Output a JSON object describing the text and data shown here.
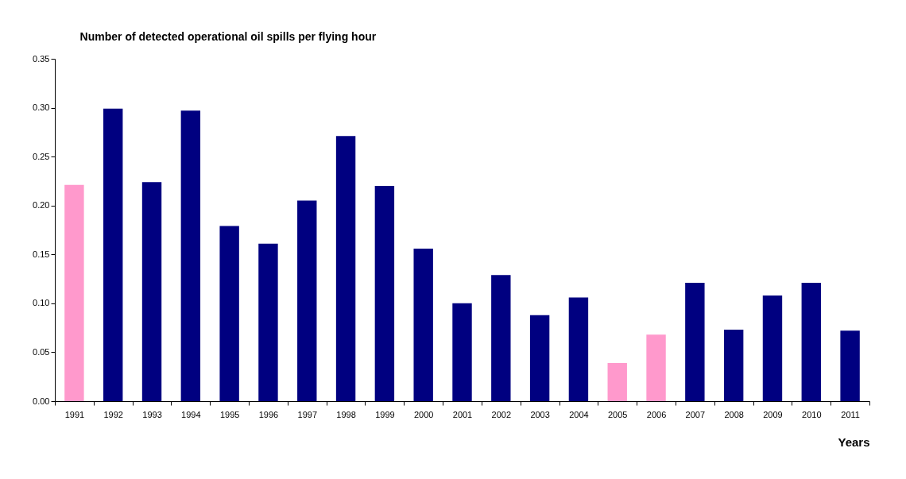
{
  "chart_data": {
    "type": "bar",
    "title": "Number of detected operational oil spills per flying hour",
    "xlabel": "Years",
    "categories": [
      "1991",
      "1992",
      "1993",
      "1994",
      "1995",
      "1996",
      "1997",
      "1998",
      "1999",
      "2000",
      "2001",
      "2002",
      "2003",
      "2004",
      "2005",
      "2006",
      "2007",
      "2008",
      "2009",
      "2010",
      "2011"
    ],
    "values": [
      0.221,
      0.299,
      0.224,
      0.297,
      0.179,
      0.161,
      0.205,
      0.271,
      0.22,
      0.156,
      0.1,
      0.129,
      0.088,
      0.106,
      0.039,
      0.068,
      0.121,
      0.073,
      0.108,
      0.121,
      0.072
    ],
    "colors": [
      "#ff99cc",
      "#000080",
      "#000080",
      "#000080",
      "#000080",
      "#000080",
      "#000080",
      "#000080",
      "#000080",
      "#000080",
      "#000080",
      "#000080",
      "#000080",
      "#000080",
      "#ff99cc",
      "#ff99cc",
      "#000080",
      "#000080",
      "#000080",
      "#000080",
      "#000080"
    ],
    "ylim": [
      0,
      0.35
    ],
    "yticks": [
      {
        "value": 0,
        "label": "0.00"
      },
      {
        "value": 0.05,
        "label": "0.05"
      },
      {
        "value": 0.1,
        "label": "0.10"
      },
      {
        "value": 0.15,
        "label": "0.15"
      },
      {
        "value": 0.2,
        "label": "0.20"
      },
      {
        "value": 0.25,
        "label": "0.25"
      },
      {
        "value": 0.3,
        "label": "0.30"
      },
      {
        "value": 0.35,
        "label": "0.35"
      }
    ]
  }
}
